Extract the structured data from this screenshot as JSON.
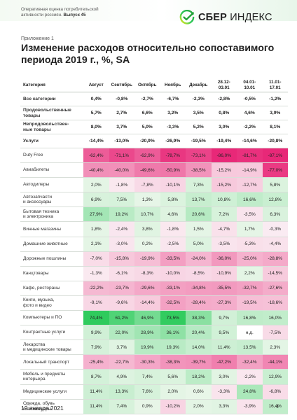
{
  "colors": {
    "brand": "#21a038",
    "accent": "#2ecb5c"
  },
  "header": {
    "note_line1": "Оперативная оценка потребительской",
    "note_line2": "активности россиян. ",
    "note_issue": "Выпуск 45"
  },
  "logo": {
    "icon": "sber-logo-icon",
    "brand": "СБЕР",
    "product": "ИНДЕКС"
  },
  "appendix": "Приложение 1",
  "title": "Изменение расходов относительно сопоставимого периода 2019 г., %, SA",
  "table": {
    "category_header": "Категория",
    "columns": [
      [
        "Август"
      ],
      [
        "Сентябрь"
      ],
      [
        "Октябрь"
      ],
      [
        "Ноябрь"
      ],
      [
        "Декабрь"
      ],
      [
        "28.12-",
        "03.01"
      ],
      [
        "04.01-",
        "10.01"
      ],
      [
        "11.01-",
        "17.01"
      ]
    ],
    "summary_rows": [
      {
        "label": [
          "Все категории"
        ],
        "values": [
          "0,4%",
          "-0,8%",
          "-2,7%",
          "-6,7%",
          "-2,3%",
          "-2,8%",
          "-0,5%",
          "-1,2%"
        ]
      },
      {
        "label": [
          "Продовольственные",
          "товары"
        ],
        "values": [
          "5,7%",
          "2,7%",
          "6,6%",
          "3,2%",
          "3,5%",
          "0,8%",
          "4,6%",
          "3,9%"
        ]
      },
      {
        "label": [
          "Непродовольствен-",
          "ные товары"
        ],
        "values": [
          "8,0%",
          "3,7%",
          "5,0%",
          "-3,3%",
          "5,2%",
          "3,0%",
          "-2,2%",
          "8,1%"
        ]
      },
      {
        "label": [
          "Услуги"
        ],
        "values": [
          "-14,4%",
          "-13,0%",
          "-20,9%",
          "-26,9%",
          "-19,5%",
          "-19,4%",
          "-14,6%",
          "-20,8%"
        ]
      }
    ],
    "rows": [
      {
        "label": [
          "Duty Free"
        ],
        "values": [
          "-62,4%",
          "-71,1%",
          "-62,9%",
          "-78,7%",
          "-73,1%",
          "-86,0%",
          "-81,7%",
          "-87,1%"
        ]
      },
      {
        "label": [
          "Авиабилеты"
        ],
        "values": [
          "-40,4%",
          "-40,0%",
          "-49,6%",
          "-50,9%",
          "-38,5%",
          "-15,2%",
          "-14,9%",
          "-77,0%"
        ]
      },
      {
        "label": [
          "Автодилеры"
        ],
        "values": [
          "2,0%",
          "-1,8%",
          "-7,8%",
          "-10,1%",
          "7,3%",
          "-15,2%",
          "-12,7%",
          "5,8%"
        ]
      },
      {
        "label": [
          "Автозапчасти",
          "и аксессуары"
        ],
        "values": [
          "6,9%",
          "7,5%",
          "1,3%",
          "5,8%",
          "13,7%",
          "10,8%",
          "16,6%",
          "12,8%"
        ]
      },
      {
        "label": [
          "Бытовая техника",
          "и электроника"
        ],
        "values": [
          "27,9%",
          "19,2%",
          "10,7%",
          "4,6%",
          "20,6%",
          "7,2%",
          "-3,5%",
          "6,3%"
        ]
      },
      {
        "label": [
          "Винные магазины"
        ],
        "values": [
          "1,8%",
          "-2,4%",
          "3,8%",
          "-1,8%",
          "1,5%",
          "-4,7%",
          "1,7%",
          "-0,3%"
        ]
      },
      {
        "label": [
          "Домашние животные"
        ],
        "values": [
          "2,1%",
          "-3,0%",
          "0,2%",
          "-2,5%",
          "5,0%",
          "-3,5%",
          "-5,3%",
          "-4,4%"
        ]
      },
      {
        "label": [
          "Дорожные пошлины"
        ],
        "values": [
          "-7,0%",
          "-15,8%",
          "-19,9%",
          "-33,5%",
          "-24,0%",
          "-36,0%",
          "-25,0%",
          "-28,8%"
        ]
      },
      {
        "label": [
          "Канцтовары"
        ],
        "values": [
          "-1,3%",
          "-6,1%",
          "-8,3%",
          "-10,0%",
          "-8,5%",
          "-10,9%",
          "2,2%",
          "-14,5%"
        ]
      },
      {
        "label": [
          "Кафе, рестораны"
        ],
        "values": [
          "-22,2%",
          "-23,7%",
          "-29,6%",
          "-33,1%",
          "-34,8%",
          "-35,5%",
          "-32,7%",
          "-27,6%"
        ]
      },
      {
        "label": [
          "Книги, музыка,",
          "фото и видео"
        ],
        "values": [
          "-9,1%",
          "-9,6%",
          "-14,4%",
          "-32,5%",
          "-28,4%",
          "-27,3%",
          "-19,5%",
          "-18,6%"
        ]
      },
      {
        "label": [
          "Компьютеры и ПО"
        ],
        "values": [
          "74,4%",
          "61,2%",
          "46,9%",
          "73,5%",
          "38,3%",
          "9,7%",
          "16,8%",
          "16,0%"
        ]
      },
      {
        "label": [
          "Контрактные услуги"
        ],
        "values": [
          "9,9%",
          "22,0%",
          "28,9%",
          "36,1%",
          "20,4%",
          "9,5%",
          "н.д.",
          "-7,5%"
        ]
      },
      {
        "label": [
          "Лекарства",
          "и медицинские товары"
        ],
        "values": [
          "7,9%",
          "3,7%",
          "19,9%",
          "19,3%",
          "14,0%",
          "11,4%",
          "13,5%",
          "2,3%"
        ]
      },
      {
        "label": [
          "Локальный транспорт"
        ],
        "values": [
          "-25,4%",
          "-22,7%",
          "-30,3%",
          "-38,3%",
          "-39,7%",
          "-47,2%",
          "-32,4%",
          "-44,1%"
        ]
      },
      {
        "label": [
          "Мебель и предметы",
          "интерьера"
        ],
        "values": [
          "8,7%",
          "4,9%",
          "7,4%",
          "5,6%",
          "18,2%",
          "3,0%",
          "-2,2%",
          "12,9%"
        ]
      },
      {
        "label": [
          "Медицинские услуги"
        ],
        "values": [
          "11,4%",
          "13,3%",
          "7,6%",
          "2,0%",
          "0,6%",
          "-3,3%",
          "24,8%",
          "-6,8%"
        ]
      },
      {
        "label": [
          "Одежда, обувь",
          "и аксессуары"
        ],
        "values": [
          "11,4%",
          "7,4%",
          "0,9%",
          "-10,2%",
          "2,0%",
          "3,3%",
          "-3,9%",
          "16,4%"
        ]
      }
    ]
  },
  "footer": {
    "date": "19 января 2021",
    "page": "4"
  }
}
